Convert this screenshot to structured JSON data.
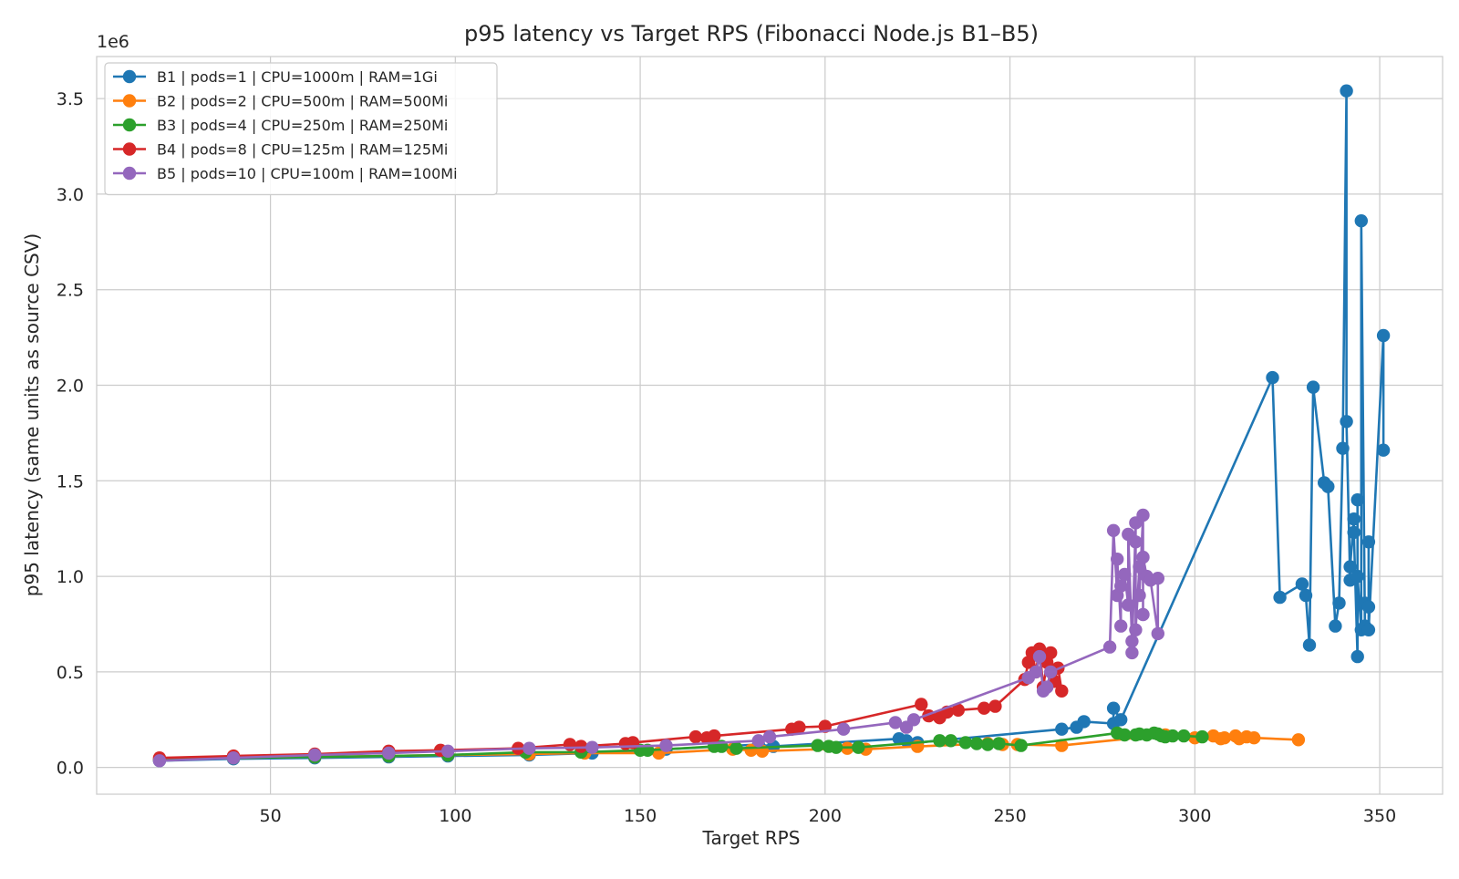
{
  "chart_data": {
    "type": "line",
    "title": "p95 latency vs Target RPS (Fibonacci Node.js B1–B5)",
    "xlabel": "Target RPS",
    "ylabel": "p95 latency (same units as source CSV)",
    "y_offset_label": "1e6",
    "y_scale": 1000000,
    "xlim": [
      3,
      367
    ],
    "ylim": [
      -0.14,
      3.72
    ],
    "x_ticks": [
      50,
      100,
      150,
      200,
      250,
      300,
      350
    ],
    "x_tick_labels": [
      "50",
      "100",
      "150",
      "200",
      "250",
      "300",
      "350"
    ],
    "y_ticks": [
      0.0,
      0.5,
      1.0,
      1.5,
      2.0,
      2.5,
      3.0,
      3.5
    ],
    "y_tick_labels": [
      "0.0",
      "0.5",
      "1.0",
      "1.5",
      "2.0",
      "2.5",
      "3.0",
      "3.5"
    ],
    "grid": true,
    "legend_position": "top-left",
    "series": [
      {
        "name": "B1 | pods=1 | CPU=1000m | RAM=1Gi",
        "color": "#1f77b4",
        "x": [
          20,
          40,
          62,
          82,
          98,
          120,
          137,
          157,
          182,
          186,
          220,
          222,
          225,
          264,
          268,
          270,
          278,
          278,
          280,
          321,
          323,
          329,
          330,
          331,
          332,
          335,
          336,
          338,
          339,
          340,
          341,
          341,
          342,
          342,
          343,
          343,
          344,
          344,
          344,
          345,
          345,
          346,
          346,
          347,
          347,
          347,
          351,
          351
        ],
        "y": [
          0.035,
          0.045,
          0.05,
          0.055,
          0.06,
          0.065,
          0.075,
          0.095,
          0.12,
          0.11,
          0.15,
          0.14,
          0.13,
          0.2,
          0.21,
          0.24,
          0.23,
          0.31,
          0.25,
          2.04,
          0.89,
          0.96,
          0.9,
          0.64,
          1.99,
          1.49,
          1.47,
          0.74,
          0.86,
          1.67,
          3.54,
          1.81,
          0.98,
          1.05,
          1.3,
          1.23,
          0.58,
          1.4,
          1.0,
          0.72,
          2.86,
          0.74,
          0.86,
          0.84,
          1.18,
          0.72,
          2.26,
          1.66
        ]
      },
      {
        "name": "B2 | pods=2 | CPU=500m | RAM=500Mi",
        "color": "#ff7f0e",
        "x": [
          20,
          40,
          62,
          82,
          98,
          120,
          135,
          155,
          175,
          180,
          183,
          206,
          211,
          225,
          244,
          248,
          252,
          264,
          292,
          300,
          305,
          307,
          308,
          311,
          312,
          314,
          316,
          328
        ],
        "y": [
          0.04,
          0.05,
          0.055,
          0.06,
          0.065,
          0.07,
          0.075,
          0.075,
          0.095,
          0.09,
          0.085,
          0.1,
          0.095,
          0.11,
          0.125,
          0.12,
          0.12,
          0.115,
          0.17,
          0.155,
          0.165,
          0.15,
          0.155,
          0.165,
          0.15,
          0.16,
          0.155,
          0.145
        ]
      },
      {
        "name": "B3 | pods=4 | CPU=250m | RAM=250Mi",
        "color": "#2ca02c",
        "x": [
          20,
          40,
          62,
          82,
          98,
          119,
          134,
          150,
          152,
          170,
          172,
          176,
          198,
          201,
          203,
          209,
          231,
          234,
          238,
          241,
          244,
          247,
          253,
          279,
          281,
          284,
          285,
          287,
          289,
          290,
          291,
          292,
          294,
          297,
          302
        ],
        "y": [
          0.04,
          0.05,
          0.055,
          0.06,
          0.065,
          0.08,
          0.08,
          0.09,
          0.09,
          0.11,
          0.11,
          0.1,
          0.115,
          0.11,
          0.105,
          0.105,
          0.14,
          0.14,
          0.13,
          0.125,
          0.12,
          0.125,
          0.115,
          0.18,
          0.17,
          0.17,
          0.175,
          0.17,
          0.18,
          0.175,
          0.165,
          0.16,
          0.165,
          0.165,
          0.16
        ]
      },
      {
        "name": "B4 | pods=8 | CPU=125m | RAM=125Mi",
        "color": "#d62728",
        "x": [
          20,
          40,
          62,
          82,
          96,
          117,
          131,
          134,
          146,
          148,
          165,
          168,
          170,
          191,
          193,
          200,
          226,
          228,
          231,
          233,
          236,
          243,
          246,
          254,
          255,
          256,
          257,
          258,
          259,
          260,
          261,
          262,
          263,
          264
        ],
        "y": [
          0.05,
          0.06,
          0.07,
          0.085,
          0.09,
          0.1,
          0.12,
          0.11,
          0.125,
          0.13,
          0.16,
          0.155,
          0.165,
          0.2,
          0.21,
          0.215,
          0.33,
          0.27,
          0.26,
          0.29,
          0.3,
          0.31,
          0.32,
          0.46,
          0.55,
          0.6,
          0.5,
          0.62,
          0.42,
          0.55,
          0.6,
          0.45,
          0.52,
          0.4
        ]
      },
      {
        "name": "B5 | pods=10 | CPU=100m | RAM=100Mi",
        "color": "#9467bd",
        "x": [
          20,
          40,
          62,
          82,
          98,
          120,
          137,
          157,
          182,
          185,
          205,
          219,
          222,
          224,
          255,
          257,
          258,
          259,
          260,
          261,
          277,
          278,
          279,
          279,
          280,
          280,
          281,
          282,
          282,
          283,
          283,
          284,
          284,
          284,
          285,
          285,
          286,
          286,
          286,
          287,
          288,
          290,
          290
        ],
        "y": [
          0.035,
          0.05,
          0.065,
          0.075,
          0.085,
          0.1,
          0.105,
          0.115,
          0.14,
          0.16,
          0.2,
          0.235,
          0.21,
          0.25,
          0.47,
          0.5,
          0.58,
          0.4,
          0.42,
          0.5,
          0.63,
          1.24,
          0.9,
          1.09,
          0.74,
          0.95,
          1.01,
          0.85,
          1.22,
          0.66,
          0.6,
          1.28,
          1.18,
          0.72,
          1.05,
          0.9,
          1.32,
          0.8,
          1.1,
          1.0,
          0.98,
          0.7,
          0.99
        ]
      }
    ]
  }
}
